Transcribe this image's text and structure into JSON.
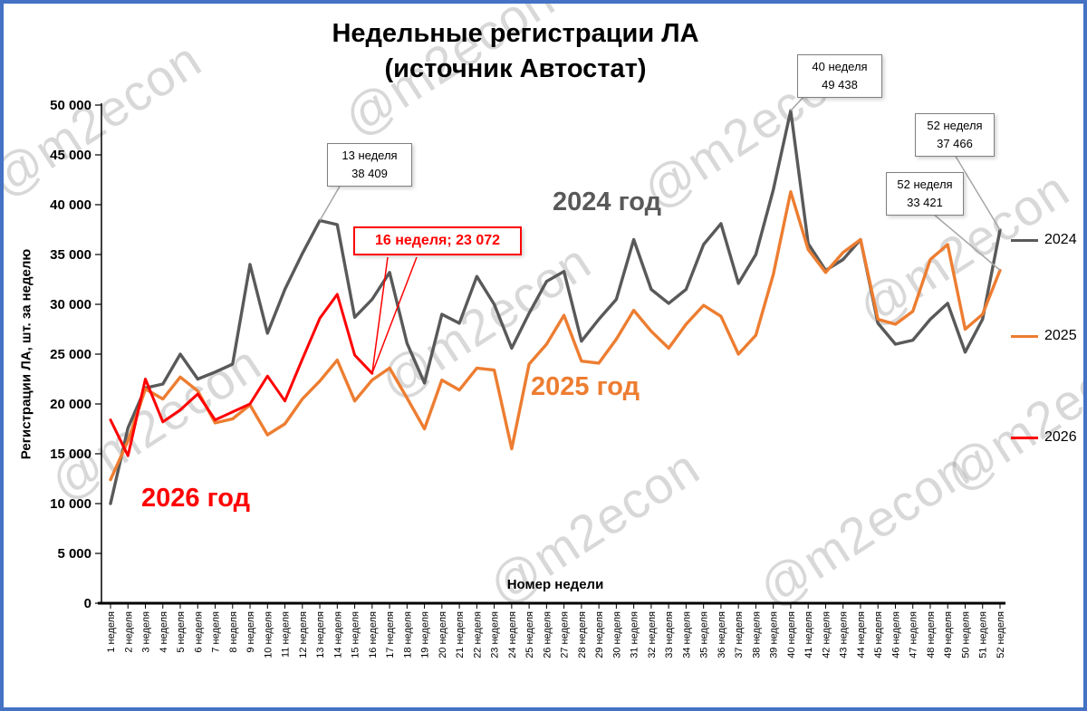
{
  "title": {
    "line1": "Недельные регистрации ЛА",
    "line2": "(источник Автостат)"
  },
  "axes": {
    "y_title": "Регистрации ЛА, шт. за неделю",
    "x_title": "Номер недели",
    "y_tick_labels": [
      "0",
      "5 000",
      "10 000",
      "15 000",
      "20 000",
      "25 000",
      "30 000",
      "35 000",
      "40 000",
      "45 000",
      "50 000"
    ],
    "x_tick_labels": [
      "1 неделя",
      "2 неделя",
      "3 неделя",
      "4 неделя",
      "5 неделя",
      "6 неделя",
      "7 неделя",
      "8 неделя",
      "9 неделя",
      "10 неделя",
      "11 неделя",
      "12 неделя",
      "13 неделя",
      "14 неделя",
      "15 неделя",
      "16 неделя",
      "17 неделя",
      "18 неделя",
      "19 неделя",
      "20 неделя",
      "21 неделя",
      "22 неделя",
      "23 неделя",
      "24 неделя",
      "25 неделя",
      "26 неделя",
      "27 неделя",
      "28 неделя",
      "29 неделя",
      "30 неделя",
      "31 неделя",
      "32 неделя",
      "33 неделя",
      "34 неделя",
      "35 неделя",
      "36 неделя",
      "37 неделя",
      "38 неделя",
      "39 неделя",
      "40 неделя",
      "41 неделя",
      "42 неделя",
      "43 неделя",
      "44 неделя",
      "45 неделя",
      "46 неделя",
      "47 неделя",
      "48 неделя",
      "49 неделя",
      "50 неделя",
      "51 неделя",
      "52 неделя"
    ]
  },
  "legend": {
    "items": [
      {
        "label": "2024",
        "color": "#595959"
      },
      {
        "label": "2025",
        "color": "#ED7D31"
      },
      {
        "label": "2026",
        "color": "#FF0000"
      }
    ]
  },
  "series_labels": [
    {
      "text": "2024 год",
      "color": "#595959"
    },
    {
      "text": "2025 год",
      "color": "#ED7D31"
    },
    {
      "text": "2026 год",
      "color": "#FF0000"
    }
  ],
  "annotations": [
    {
      "line1": "13 неделя",
      "line2": "38 409",
      "series": "2024",
      "week": 13,
      "value": 38409,
      "style": "gray"
    },
    {
      "line1": "40 неделя",
      "line2": "49 438",
      "series": "2024",
      "week": 40,
      "value": 49438,
      "style": "gray"
    },
    {
      "line1": "52 неделя",
      "line2": "37 466",
      "series": "2024",
      "week": 52,
      "value": 37466,
      "style": "gray"
    },
    {
      "line1": "52 неделя",
      "line2": "33 421",
      "series": "2025",
      "week": 52,
      "value": 33421,
      "style": "gray"
    },
    {
      "line1": "16 неделя;  23 072",
      "line2": "",
      "series": "2026",
      "week": 16,
      "value": 23072,
      "style": "red"
    }
  ],
  "watermark": {
    "text": "@m2econ"
  },
  "chart_data": {
    "type": "line",
    "title": "Недельные регистрации ЛА (источник Автостат)",
    "xlabel": "Номер недели",
    "ylabel": "Регистрации ЛА, шт. за неделю",
    "ylim": [
      0,
      50000
    ],
    "ytick_step": 5000,
    "grid": false,
    "legend_position": "right",
    "x": [
      1,
      2,
      3,
      4,
      5,
      6,
      7,
      8,
      9,
      10,
      11,
      12,
      13,
      14,
      15,
      16,
      17,
      18,
      19,
      20,
      21,
      22,
      23,
      24,
      25,
      26,
      27,
      28,
      29,
      30,
      31,
      32,
      33,
      34,
      35,
      36,
      37,
      38,
      39,
      40,
      41,
      42,
      43,
      44,
      45,
      46,
      47,
      48,
      49,
      50,
      51,
      52
    ],
    "series": [
      {
        "name": "2024",
        "color": "#595959",
        "values": [
          10000,
          17600,
          21600,
          22000,
          25000,
          22500,
          23200,
          24000,
          34000,
          27100,
          31500,
          35100,
          38409,
          38000,
          28700,
          30500,
          33200,
          26100,
          22100,
          29000,
          28100,
          32800,
          30000,
          25600,
          29100,
          32300,
          33300,
          26300,
          28500,
          30500,
          36500,
          31500,
          30100,
          31500,
          36000,
          38100,
          32100,
          35000,
          41500,
          49438,
          36100,
          33400,
          34500,
          36500,
          28100,
          26000,
          26400,
          28500,
          30100,
          25200,
          28500,
          37466
        ]
      },
      {
        "name": "2025",
        "color": "#ED7D31",
        "values": [
          12400,
          16300,
          21500,
          20500,
          22700,
          21300,
          18100,
          18500,
          19900,
          16900,
          18000,
          20500,
          22300,
          24400,
          20300,
          22400,
          23600,
          20600,
          17500,
          22400,
          21400,
          23600,
          23400,
          15500,
          24000,
          26000,
          28900,
          24300,
          24100,
          26500,
          29400,
          27300,
          25600,
          28000,
          29900,
          28800,
          25000,
          26900,
          33000,
          41300,
          35500,
          33200,
          35200,
          36500,
          28500,
          28000,
          29300,
          34500,
          36000,
          27500,
          29000,
          33421
        ]
      },
      {
        "name": "2026",
        "color": "#FF0000",
        "values": [
          18400,
          14800,
          22500,
          18200,
          19400,
          21000,
          18400,
          19200,
          20000,
          22800,
          20300,
          24500,
          28600,
          31000,
          24900,
          23072
        ]
      }
    ]
  }
}
